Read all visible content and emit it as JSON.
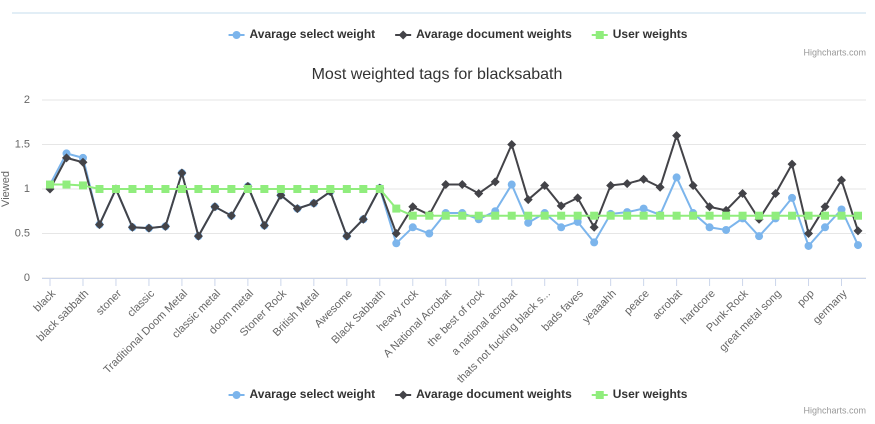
{
  "chart_data": {
    "type": "line",
    "title": "Most weighted tags for blacksabath",
    "y_label": "Viewed",
    "credits": "Highcharts.com",
    "grid": true,
    "ylim": [
      0,
      2
    ],
    "yticks": [
      0,
      0.5,
      1,
      1.5,
      2
    ],
    "categories": [
      "black",
      null,
      "black sabbath",
      null,
      "stoner",
      null,
      "classic",
      null,
      "Traditional Doom Metal",
      null,
      "classic metal",
      null,
      "doom metal",
      null,
      "Stoner Rock",
      null,
      "British Metal",
      null,
      "Awesome",
      null,
      "Black Sabbath",
      null,
      "heavy rock",
      null,
      "A National Acrobat",
      null,
      "the best of rock",
      null,
      "a national acrobat",
      null,
      "thats not fucking black s...",
      null,
      "bads faves",
      null,
      "yeaaahh",
      null,
      "peace",
      null,
      "acrobat",
      null,
      "hardcore",
      null,
      "Punk-Rock",
      null,
      "great metal song",
      null,
      "pop",
      null,
      "germany",
      null
    ],
    "series": [
      {
        "name": "Avarage select weight",
        "color": "#7cb5ec",
        "marker": "circle",
        "values": [
          1.05,
          1.4,
          1.35,
          0.6,
          1.0,
          0.57,
          0.56,
          0.58,
          1.18,
          0.47,
          0.8,
          0.7,
          1.03,
          0.59,
          0.93,
          0.78,
          0.84,
          0.97,
          0.47,
          0.66,
          1.01,
          0.39,
          0.57,
          0.5,
          0.73,
          0.73,
          0.66,
          0.75,
          1.05,
          0.62,
          0.73,
          0.57,
          0.63,
          0.4,
          0.72,
          0.74,
          0.78,
          0.71,
          1.13,
          0.73,
          0.57,
          0.54,
          0.67,
          0.47,
          0.67,
          0.9,
          0.36,
          0.57,
          0.77,
          0.37
        ]
      },
      {
        "name": "Avarage document weights",
        "color": "#434348",
        "marker": "diamond",
        "values": [
          1.0,
          1.35,
          1.3,
          0.6,
          1.0,
          0.57,
          0.56,
          0.58,
          1.18,
          0.47,
          0.8,
          0.7,
          1.03,
          0.59,
          0.93,
          0.78,
          0.84,
          0.97,
          0.47,
          0.66,
          1.01,
          0.5,
          0.8,
          0.71,
          1.05,
          1.05,
          0.95,
          1.08,
          1.5,
          0.88,
          1.04,
          0.81,
          0.9,
          0.57,
          1.04,
          1.06,
          1.11,
          1.02,
          1.6,
          1.04,
          0.8,
          0.76,
          0.95,
          0.66,
          0.95,
          1.28,
          0.5,
          0.8,
          1.1,
          0.53
        ]
      },
      {
        "name": "User weights",
        "color": "#90ed7d",
        "marker": "square",
        "values": [
          1.05,
          1.05,
          1.04,
          1.0,
          1.0,
          1.0,
          1.0,
          1.0,
          1.0,
          1.0,
          1.0,
          1.0,
          1.0,
          1.0,
          1.0,
          1.0,
          1.0,
          1.0,
          1.0,
          1.0,
          1.0,
          0.78,
          0.7,
          0.7,
          0.7,
          0.7,
          0.7,
          0.7,
          0.7,
          0.7,
          0.7,
          0.7,
          0.7,
          0.7,
          0.7,
          0.7,
          0.7,
          0.7,
          0.7,
          0.7,
          0.7,
          0.7,
          0.7,
          0.7,
          0.7,
          0.7,
          0.7,
          0.7,
          0.7,
          0.7
        ]
      }
    ]
  }
}
